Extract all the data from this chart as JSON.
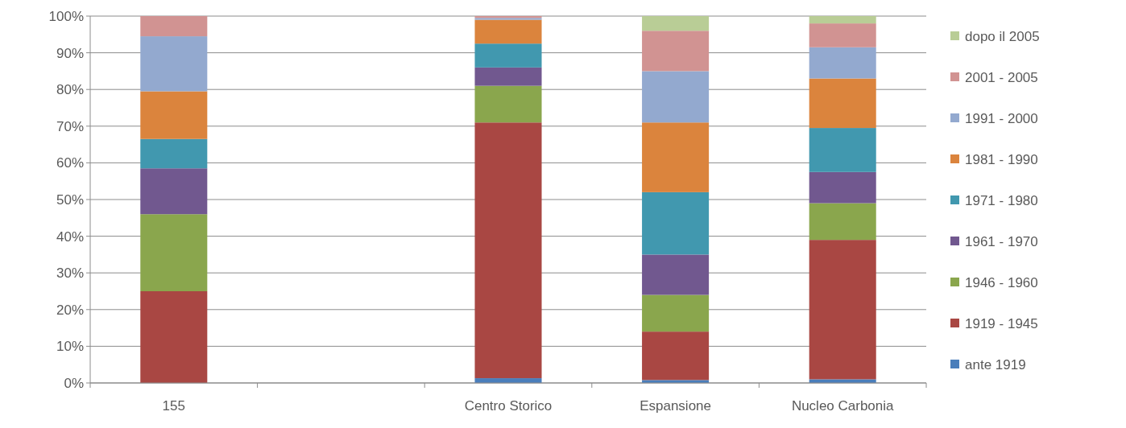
{
  "chart_data": {
    "type": "bar",
    "stacked": true,
    "categories": [
      "155",
      null,
      "Centro Storico",
      "Espansione",
      "Nucleo Carbonia"
    ],
    "series": [
      {
        "name": "ante 1919",
        "color": "#4a7ebb",
        "values": [
          0,
          null,
          1.3,
          0.8,
          1
        ]
      },
      {
        "name": "1919 - 1945",
        "color": "#a94743",
        "values": [
          25,
          null,
          69.7,
          13.2,
          38
        ]
      },
      {
        "name": "1946 - 1960",
        "color": "#8aa64d",
        "values": [
          21,
          null,
          10,
          10,
          10
        ]
      },
      {
        "name": "1961 - 1970",
        "color": "#71588f",
        "values": [
          12.5,
          null,
          5,
          11,
          8.5
        ]
      },
      {
        "name": "1971 - 1980",
        "color": "#4198af",
        "values": [
          8,
          null,
          6.5,
          17,
          12
        ]
      },
      {
        "name": "1981 - 1990",
        "color": "#db843d",
        "values": [
          13,
          null,
          6.5,
          19,
          13.5
        ]
      },
      {
        "name": "1991 - 2000",
        "color": "#93a9cf",
        "values": [
          15,
          null,
          0.5,
          14,
          8.5
        ]
      },
      {
        "name": "2001 - 2005",
        "color": "#d19392",
        "values": [
          5.5,
          null,
          0.5,
          11,
          6.5
        ]
      },
      {
        "name": "dopo il 2005",
        "color": "#b9cd96",
        "values": [
          0,
          null,
          0,
          4,
          2
        ]
      }
    ],
    "ylim": [
      0,
      100
    ],
    "yticks": [
      {
        "value": 0,
        "label": "0%"
      },
      {
        "value": 10,
        "label": "10%"
      },
      {
        "value": 20,
        "label": "20%"
      },
      {
        "value": 30,
        "label": "30%"
      },
      {
        "value": 40,
        "label": "40%"
      },
      {
        "value": 50,
        "label": "50%"
      },
      {
        "value": 60,
        "label": "60%"
      },
      {
        "value": 70,
        "label": "70%"
      },
      {
        "value": 80,
        "label": "80%"
      },
      {
        "value": 90,
        "label": "90%"
      },
      {
        "value": 100,
        "label": "100%"
      }
    ],
    "grid": "y",
    "legend": "right"
  }
}
